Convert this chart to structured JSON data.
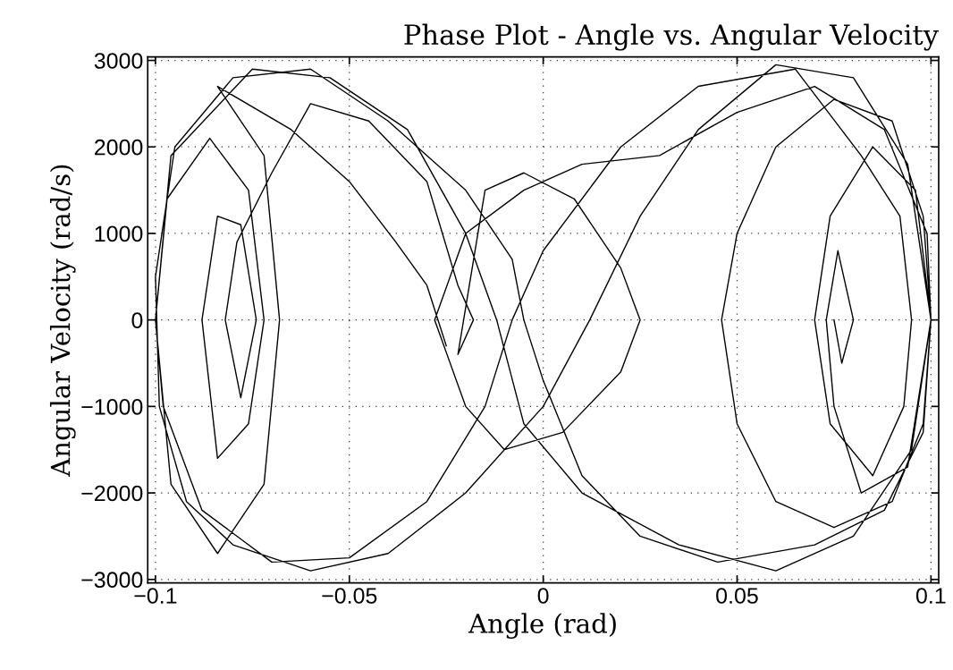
{
  "chart_data": {
    "type": "line",
    "title": "Phase Plot - Angle vs. Angular Velocity",
    "xlabel": "Angle (rad)",
    "ylabel": "Angular Velocity (rad/s)",
    "xlim": [
      -0.102,
      0.102
    ],
    "ylim": [
      -3040,
      3040
    ],
    "xticks": [
      -0.1,
      -0.05,
      0,
      0.05,
      0.1
    ],
    "yticks": [
      -3000,
      -2000,
      -1000,
      0,
      1000,
      2000,
      3000
    ],
    "grid": true,
    "legend": false,
    "series": [
      {
        "color": "#000000",
        "x": [
          -0.025,
          -0.03,
          -0.038,
          -0.05,
          -0.065,
          -0.084,
          -0.072,
          -0.068,
          -0.072,
          -0.084,
          -0.096,
          -0.1,
          -0.096,
          -0.075,
          -0.055,
          -0.035,
          -0.02,
          -0.012,
          -0.005,
          0.01,
          0.035,
          0.06,
          0.08,
          0.095,
          0.1,
          0.096,
          0.085,
          0.074,
          0.07,
          0.074,
          0.085,
          0.093,
          0.095,
          0.092,
          0.082,
          0.065,
          0.04,
          0.02,
          0.0,
          -0.008,
          -0.015,
          -0.03,
          -0.05,
          -0.07,
          -0.088,
          -0.098,
          -0.1,
          -0.097,
          -0.086,
          -0.076,
          -0.072,
          -0.076,
          -0.084,
          -0.088,
          -0.084,
          -0.078,
          -0.074,
          -0.078,
          -0.082,
          -0.079,
          -0.07,
          -0.06,
          -0.045,
          -0.03,
          -0.022,
          -0.018,
          -0.022,
          -0.015,
          -0.005,
          0.008,
          0.02,
          0.025,
          0.02,
          0.005,
          -0.01,
          -0.02,
          -0.028,
          -0.02,
          -0.005,
          0.01,
          0.03,
          0.05,
          0.07,
          0.088,
          0.099,
          0.1,
          0.098,
          0.09,
          0.075,
          0.06,
          0.05,
          0.046,
          0.05,
          0.06,
          0.075,
          0.09,
          0.098,
          0.1,
          0.098,
          0.088,
          0.07,
          0.045,
          0.025,
          0.01,
          0.0,
          -0.005,
          -0.008,
          -0.02,
          -0.04,
          -0.06,
          -0.08,
          -0.095,
          -0.1,
          -0.099,
          -0.092,
          -0.08,
          -0.06,
          -0.04,
          -0.02,
          0.0,
          0.012,
          0.025,
          0.04,
          0.06,
          0.08,
          0.094,
          0.1,
          0.094,
          0.082,
          0.075,
          0.073,
          0.076,
          0.08,
          0.077,
          0.075
        ],
        "values": [
          -300,
          400,
          900,
          1600,
          2200,
          2700,
          1900,
          0,
          -1900,
          -2700,
          -1900,
          0,
          1900,
          2900,
          2800,
          2200,
          1000,
          0,
          -1200,
          -2000,
          -2600,
          -2900,
          -2500,
          -1500,
          0,
          1500,
          2000,
          1200,
          0,
          -1200,
          -1800,
          -1000,
          0,
          1200,
          1900,
          2900,
          2700,
          2000,
          800,
          0,
          -1000,
          -2100,
          -2750,
          -2800,
          -2200,
          -1000,
          0,
          1400,
          2100,
          1500,
          0,
          -1200,
          -1600,
          0,
          1200,
          1100,
          0,
          -900,
          0,
          900,
          1700,
          2500,
          2300,
          1600,
          400,
          0,
          -400,
          1500,
          1700,
          1400,
          600,
          0,
          -600,
          -1300,
          -1500,
          -1000,
          0,
          1000,
          1500,
          1800,
          1900,
          2400,
          2700,
          2200,
          1000,
          0,
          -1200,
          -2100,
          -2400,
          -2100,
          -1200,
          0,
          1000,
          2000,
          2550,
          2300,
          1200,
          0,
          -1300,
          -2200,
          -2600,
          -2800,
          -2500,
          -1800,
          -700,
          0,
          700,
          1500,
          2300,
          2900,
          2800,
          2000,
          500,
          -1000,
          -2100,
          -2600,
          -2900,
          -2700,
          -2000,
          -1000,
          0,
          1200,
          2200,
          2950,
          2800,
          1800,
          0,
          -1700,
          -2000,
          -1000,
          0,
          800,
          0,
          -500,
          0
        ]
      }
    ]
  }
}
